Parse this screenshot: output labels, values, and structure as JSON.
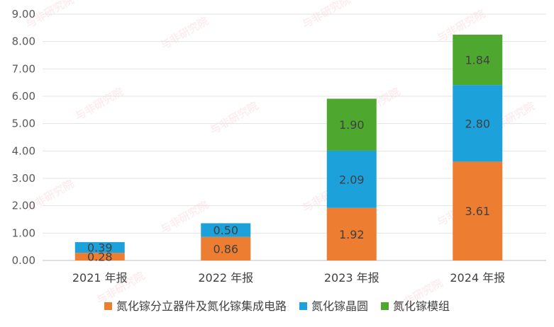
{
  "watermark": "与非研究院",
  "chart_data": {
    "type": "bar",
    "stacked": true,
    "categories": [
      "2021 年报",
      "2022 年报",
      "2023 年报",
      "2024 年报"
    ],
    "ylim": [
      0,
      9
    ],
    "yticks": [
      "0.00",
      "1.00",
      "2.00",
      "3.00",
      "4.00",
      "5.00",
      "6.00",
      "7.00",
      "8.00",
      "9.00"
    ],
    "grid": true,
    "legend_position": "bottom",
    "series": [
      {
        "name": "氮化镓分立器件及氮化镓集成电路",
        "color": "#ED7D31",
        "values": [
          0.28,
          0.86,
          1.92,
          3.61
        ],
        "labels": [
          "0.28",
          "0.86",
          "1.92",
          "3.61"
        ]
      },
      {
        "name": "氮化镓晶圆",
        "color": "#1CA1DB",
        "values": [
          0.39,
          0.5,
          2.09,
          2.8
        ],
        "labels": [
          "0.39",
          "0.50",
          "2.09",
          "2.80"
        ]
      },
      {
        "name": "氮化镓模组",
        "color": "#4EA72E",
        "values": [
          0,
          0,
          1.9,
          1.84
        ],
        "labels": [
          "",
          "",
          "1.90",
          "1.84"
        ]
      }
    ]
  }
}
